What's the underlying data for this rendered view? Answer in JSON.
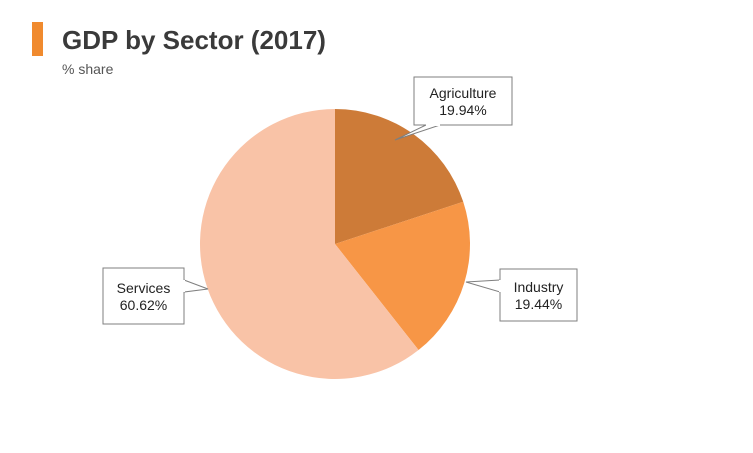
{
  "header": {
    "title": "GDP by Sector (2017)",
    "subtitle": "% share",
    "accent_color": "#f08a2e"
  },
  "chart_data": {
    "type": "pie",
    "title": "GDP by Sector (2017)",
    "subtitle": "% share",
    "slices": [
      {
        "label": "Agriculture",
        "value": 19.94,
        "display": "19.94%",
        "color": "#cd7b38"
      },
      {
        "label": "Industry",
        "value": 19.44,
        "display": "19.44%",
        "color": "#f79646"
      },
      {
        "label": "Services",
        "value": 60.62,
        "display": "60.62%",
        "color": "#f9c3a7"
      }
    ],
    "label_style": "callout"
  }
}
